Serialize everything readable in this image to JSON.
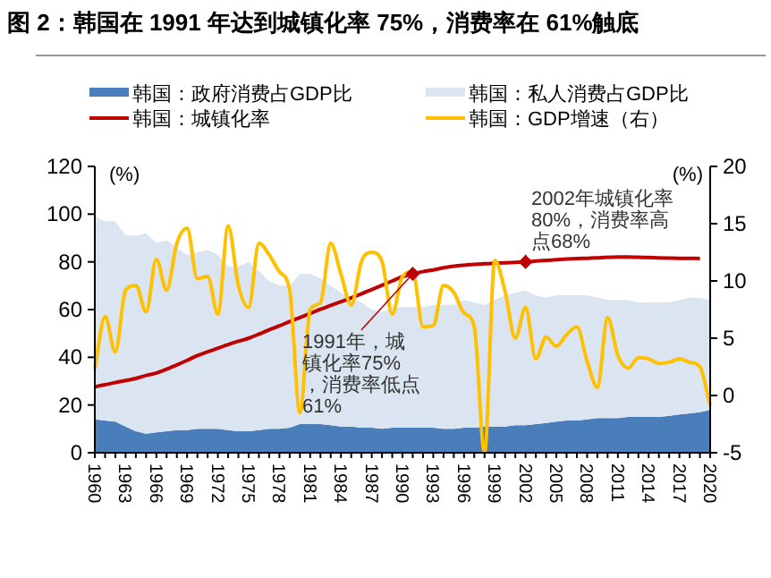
{
  "chart_data": {
    "type": "area",
    "title": "图 2：韩国在 1991 年达到城镇化率 75%，消费率在 61%触底",
    "ylabel": "(%)",
    "y2label": "(%)",
    "stacked": true,
    "legend": "top",
    "grid": false,
    "x": [
      1960,
      1961,
      1962,
      1963,
      1964,
      1965,
      1966,
      1967,
      1968,
      1969,
      1970,
      1971,
      1972,
      1973,
      1974,
      1975,
      1976,
      1977,
      1978,
      1979,
      1980,
      1981,
      1982,
      1983,
      1984,
      1985,
      1986,
      1987,
      1988,
      1989,
      1990,
      1991,
      1992,
      1993,
      1994,
      1995,
      1996,
      1997,
      1998,
      1999,
      2000,
      2001,
      2002,
      2003,
      2004,
      2005,
      2006,
      2007,
      2008,
      2009,
      2010,
      2011,
      2012,
      2013,
      2014,
      2015,
      2016,
      2017,
      2018,
      2019,
      2020
    ],
    "xlim": [
      1960,
      2020
    ],
    "xticks": [
      1960,
      1963,
      1966,
      1969,
      1972,
      1975,
      1978,
      1981,
      1984,
      1987,
      1990,
      1993,
      1996,
      1999,
      2002,
      2005,
      2008,
      2011,
      2014,
      2017,
      2020
    ],
    "ylim": [
      0,
      120
    ],
    "yticks": [
      0,
      20,
      40,
      60,
      80,
      100,
      120
    ],
    "y2lim": [
      -5,
      20
    ],
    "y2ticks": [
      -5,
      0,
      5,
      10,
      15,
      20
    ],
    "series": [
      {
        "name": "韩国：政府消费占GDP比",
        "color": "#4a7ebb",
        "values": [
          14,
          13.5,
          13,
          11,
          9,
          8,
          8.5,
          9,
          9.5,
          9.5,
          10,
          10,
          10,
          9.5,
          9,
          9,
          9.5,
          10,
          10,
          10.5,
          12,
          12,
          12,
          11.5,
          11,
          11,
          10.5,
          10.5,
          10,
          10.5,
          10.5,
          10.5,
          10.5,
          10.5,
          10,
          10,
          10.5,
          10.5,
          11,
          11,
          11,
          11.5,
          11.5,
          12,
          12.5,
          13,
          13.5,
          13.5,
          14,
          14.5,
          14.5,
          14.5,
          15,
          15,
          15,
          15,
          15.5,
          16,
          16.5,
          17,
          18
        ]
      },
      {
        "name": "韩国：私人消费占GDP比",
        "color": "#dbe5f1",
        "values": [
          85,
          83.5,
          84,
          80,
          82,
          84,
          79.5,
          80,
          76.5,
          73.5,
          74,
          75,
          73,
          68.5,
          69,
          71,
          66.5,
          62,
          60,
          59.5,
          63,
          63,
          61,
          58.5,
          56,
          54,
          52.5,
          49.5,
          49,
          50.5,
          50.5,
          50.5,
          50.5,
          51.5,
          52,
          52,
          53.5,
          52.5,
          51,
          53,
          55,
          55.5,
          56.5,
          54,
          52.5,
          53,
          52.5,
          52.5,
          52,
          50.5,
          49.5,
          49.5,
          49,
          48,
          48,
          48,
          47.5,
          48,
          48.5,
          48,
          46
        ]
      },
      {
        "name": "韩国：城镇化率",
        "type": "line",
        "color": "#c00000",
        "values": [
          27.7,
          28.5,
          29.4,
          30.3,
          31.1,
          32.4,
          33.4,
          35,
          36.8,
          38.7,
          40.7,
          42.3,
          43.8,
          45.3,
          46.7,
          48,
          49.7,
          51.5,
          53.2,
          55,
          56.7,
          58.4,
          60.1,
          61.7,
          63.3,
          64.9,
          66.6,
          68.4,
          70.2,
          72,
          73.8,
          74.9,
          75.9,
          76.6,
          77.5,
          78.2,
          78.6,
          78.9,
          79.2,
          79.4,
          79.6,
          79.8,
          80,
          80.3,
          80.6,
          80.9,
          81.2,
          81.4,
          81.5,
          81.7,
          81.9,
          82,
          82,
          81.9,
          81.8,
          81.7,
          81.6,
          81.5,
          81.5,
          81.4,
          null
        ]
      },
      {
        "name": "韩国：GDP增速（右）",
        "type": "line",
        "axis": "y2",
        "color": "#ffc000",
        "values": [
          2.3,
          6.9,
          3.8,
          9.2,
          9.6,
          7.3,
          11.9,
          9.2,
          13.3,
          14.6,
          10.2,
          10.4,
          7.1,
          14.8,
          9.6,
          7.7,
          13.3,
          12.3,
          10.8,
          9.2,
          -1.5,
          7.5,
          8.1,
          13.3,
          10.6,
          7.9,
          11.7,
          12.5,
          11.7,
          7.1,
          10.4,
          10.8,
          6.0,
          6.1,
          9.6,
          9.0,
          7.2,
          6.0,
          -5,
          11.8,
          9.1,
          5.0,
          7.7,
          3.2,
          5.1,
          4.3,
          5.3,
          6.0,
          3.0,
          0.7,
          6.8,
          3.5,
          2.4,
          3.3,
          3.2,
          2.8,
          2.9,
          3.2,
          2.9,
          2.5,
          -0.9
        ]
      }
    ],
    "annotations": [
      {
        "text": "1991年，城镇化率75%，消费率低点61%",
        "x": 1991,
        "y": 75
      },
      {
        "text": "2002年城镇化率80%，消费率高点68%",
        "x": 2002,
        "y": 80
      }
    ]
  }
}
